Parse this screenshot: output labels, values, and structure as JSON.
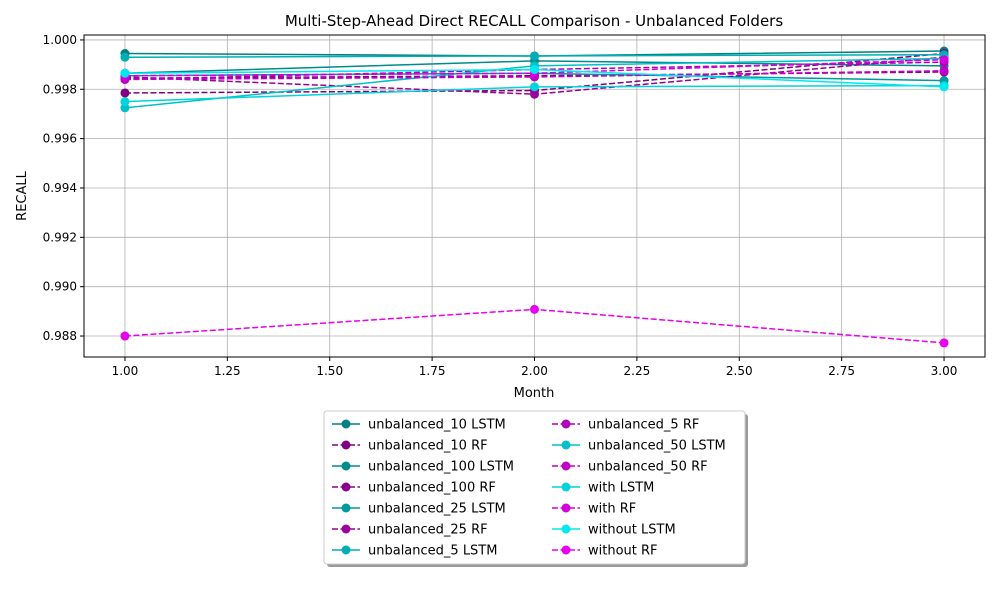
{
  "chart_data": {
    "type": "line",
    "title": "Multi-Step-Ahead Direct RECALL Comparison - Unbalanced Folders",
    "xlabel": "Month",
    "ylabel": "RECALL",
    "xlim": [
      0.9,
      3.1
    ],
    "ylim": [
      0.98715,
      1.0002
    ],
    "x_ticks": [
      1.0,
      1.25,
      1.5,
      1.75,
      2.0,
      2.25,
      2.5,
      2.75,
      3.0
    ],
    "x_tick_labels": [
      "1.00",
      "1.25",
      "1.50",
      "1.75",
      "2.00",
      "2.25",
      "2.50",
      "2.75",
      "3.00"
    ],
    "y_ticks": [
      0.988,
      0.99,
      0.992,
      0.994,
      0.996,
      0.998,
      1.0
    ],
    "y_tick_labels": [
      "0.988",
      "0.990",
      "0.992",
      "0.994",
      "0.996",
      "0.998",
      "1.000"
    ],
    "grid": true,
    "legend_position": "bottom-center",
    "x": [
      1,
      2,
      3
    ],
    "series": [
      {
        "name": "unbalanced_10 LSTM",
        "color": "#008080",
        "dash": "solid",
        "values": [
          0.99945,
          0.99935,
          0.99955
        ]
      },
      {
        "name": "unbalanced_10 RF",
        "color": "#800080",
        "dash": "dashed",
        "values": [
          0.99785,
          0.99795,
          0.99945
        ]
      },
      {
        "name": "unbalanced_100 LSTM",
        "color": "#008b8b",
        "dash": "solid",
        "values": [
          0.99865,
          0.99915,
          0.99895
        ]
      },
      {
        "name": "unbalanced_100 RF",
        "color": "#8b008b",
        "dash": "dashed",
        "values": [
          0.99845,
          0.99855,
          0.9987
        ]
      },
      {
        "name": "unbalanced_25 LSTM",
        "color": "#009a9a",
        "dash": "solid",
        "values": [
          0.99855,
          0.99865,
          0.99835
        ]
      },
      {
        "name": "unbalanced_25 RF",
        "color": "#9a009a",
        "dash": "dashed",
        "values": [
          0.9985,
          0.9978,
          0.9993
        ]
      },
      {
        "name": "unbalanced_5 LSTM",
        "color": "#00afb5",
        "dash": "solid",
        "values": [
          0.9993,
          0.99935,
          0.9994
        ]
      },
      {
        "name": "unbalanced_5 RF",
        "color": "#b000b5",
        "dash": "dashed",
        "values": [
          0.9984,
          0.9988,
          0.9991
        ]
      },
      {
        "name": "unbalanced_50 LSTM",
        "color": "#00c0c8",
        "dash": "solid",
        "values": [
          0.99725,
          0.99895,
          0.99925
        ]
      },
      {
        "name": "unbalanced_50 RF",
        "color": "#c000c8",
        "dash": "dashed",
        "values": [
          0.9984,
          0.9985,
          0.99875
        ]
      },
      {
        "name": "with LSTM",
        "color": "#00d4dc",
        "dash": "solid",
        "values": [
          0.9975,
          0.9981,
          0.99815
        ]
      },
      {
        "name": "with RF",
        "color": "#d400dc",
        "dash": "dashed",
        "values": [
          0.99855,
          0.99865,
          0.9992
        ]
      },
      {
        "name": "without LSTM",
        "color": "#00e8f0",
        "dash": "solid",
        "values": [
          0.99865,
          0.9988,
          0.9981
        ]
      },
      {
        "name": "without RF",
        "color": "#e800f0",
        "dash": "dashed",
        "values": [
          0.988,
          0.98908,
          0.98772
        ]
      }
    ]
  }
}
